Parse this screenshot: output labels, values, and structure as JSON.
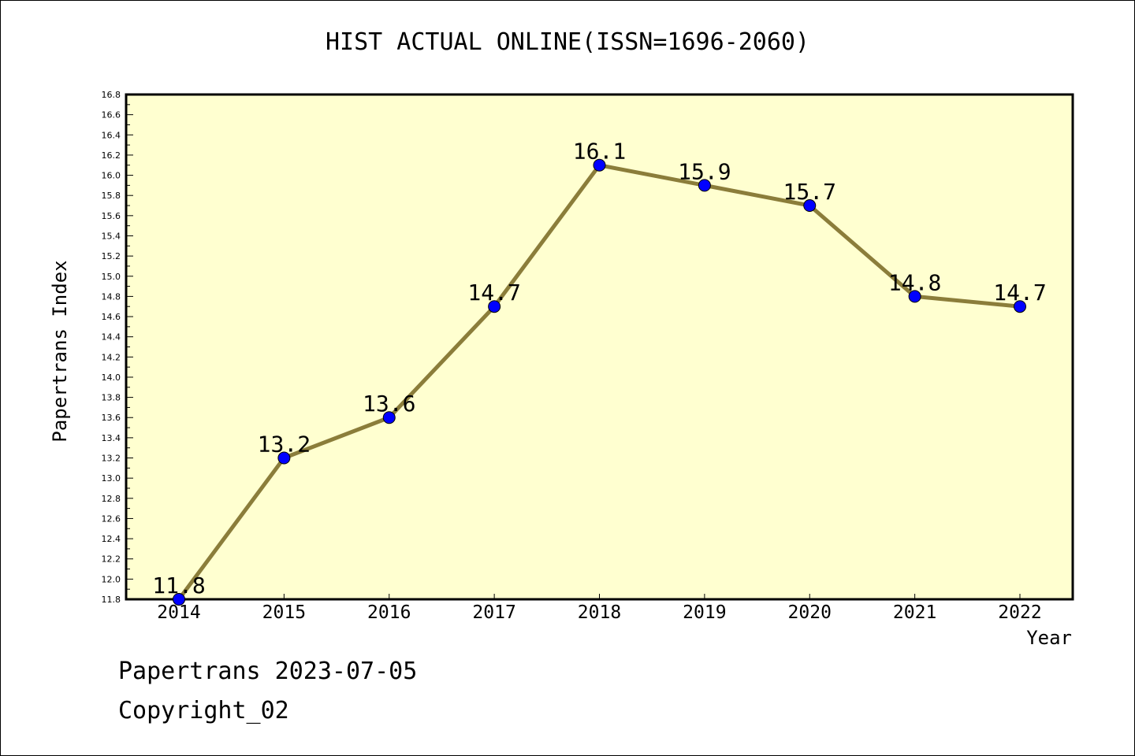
{
  "chart_data": {
    "type": "line",
    "title": "HIST ACTUAL ONLINE(ISSN=1696-2060)",
    "xlabel": "Year",
    "ylabel": "Papertrans Index",
    "categories": [
      "2014",
      "2015",
      "2016",
      "2017",
      "2018",
      "2019",
      "2020",
      "2021",
      "2022"
    ],
    "values": [
      11.8,
      13.2,
      13.6,
      14.7,
      16.1,
      15.9,
      15.7,
      14.8,
      14.7
    ],
    "data_labels": [
      "11.8",
      "13.2",
      "13.6",
      "14.7",
      "16.1",
      "15.9",
      "15.7",
      "14.8",
      "14.7"
    ],
    "ylim": [
      11.8,
      16.8
    ],
    "y_ticks": [
      "11.8",
      "12.0",
      "12.2",
      "12.4",
      "12.6",
      "12.8",
      "13.0",
      "13.2",
      "13.4",
      "13.6",
      "13.8",
      "14.0",
      "14.2",
      "14.4",
      "14.6",
      "14.8",
      "15.0",
      "15.2",
      "15.4",
      "15.6",
      "15.8",
      "16.0",
      "16.2",
      "16.4",
      "16.6",
      "16.8"
    ],
    "grid": false,
    "colors": {
      "plot_background": "#ffffd0",
      "line": "#8b7d3a",
      "marker": "#0000ff"
    }
  },
  "footer": {
    "line1": "Papertrans 2023-07-05",
    "line2": "Copyright_02"
  }
}
